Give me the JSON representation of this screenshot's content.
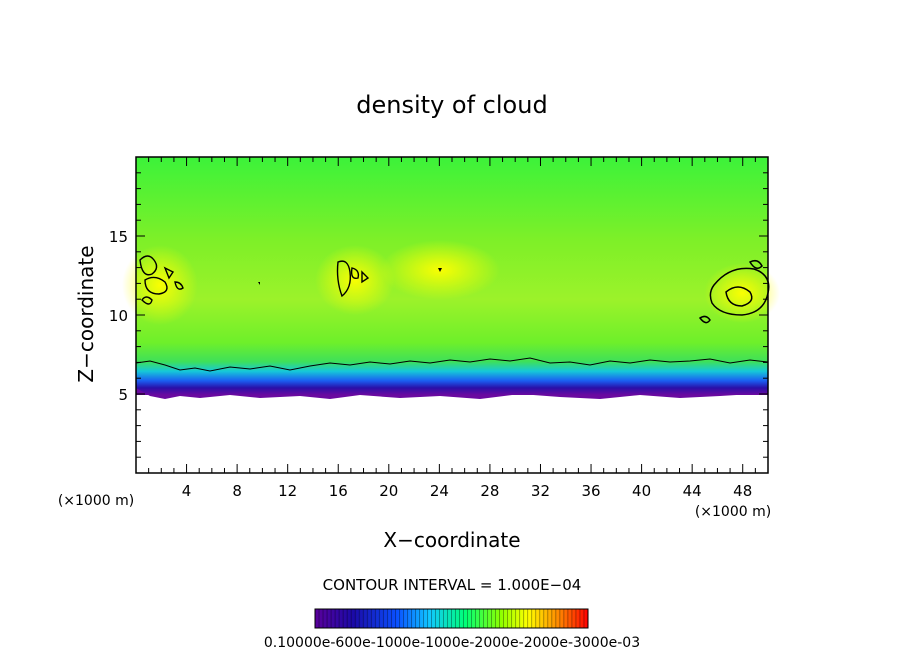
{
  "chart_data": {
    "type": "heatmap",
    "title": "density of cloud",
    "xlabel": "X−coordinate",
    "ylabel": "Z−coordinate",
    "x_unit_left": "(×1000 m)",
    "x_unit_right": "(×1000 m)",
    "xlim": [
      0,
      50
    ],
    "ylim": [
      0,
      20
    ],
    "x_ticks": [
      4,
      8,
      12,
      16,
      20,
      24,
      28,
      32,
      36,
      40,
      44,
      48
    ],
    "y_ticks": [
      5,
      10,
      15
    ],
    "grid": false,
    "contour_interval_text": "CONTOUR INTERVAL = 1.000E−04",
    "colorbar_labels_text": "0.10000e-600e-1000e-1000e-2000e-2000e-3000e-03",
    "colormap": [
      "#5a009b",
      "#1b0aa8",
      "#0a50ff",
      "#11c8ff",
      "#00ff78",
      "#8cff00",
      "#ffff00",
      "#ff8000",
      "#ff0000"
    ],
    "cloud_base_z": 5.0,
    "field_description": "cloud density field between z=5 and z=20 km; dense bottom layer near z=5-7, background green, yellow pockets near x=0-4,16-18,44-50 at z≈10-13"
  }
}
